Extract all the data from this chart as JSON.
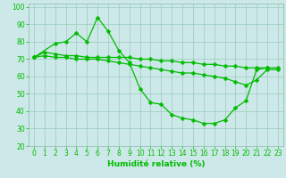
{
  "bg_color": "#cce8e8",
  "grid_color": "#99ccbb",
  "line_color": "#00bb00",
  "marker": "D",
  "markersize": 2.5,
  "linewidth": 0.9,
  "xlabel": "Humidité relative (%)",
  "xlabel_fontsize": 6.5,
  "tick_fontsize": 5.5,
  "xlim": [
    -0.5,
    23.5
  ],
  "ylim": [
    20,
    102
  ],
  "yticks": [
    20,
    30,
    40,
    50,
    60,
    70,
    80,
    90,
    100
  ],
  "xticks": [
    0,
    1,
    2,
    3,
    4,
    5,
    6,
    7,
    8,
    9,
    10,
    11,
    12,
    13,
    14,
    15,
    16,
    17,
    18,
    19,
    20,
    21,
    22,
    23
  ],
  "series_A_x": [
    0,
    1,
    2,
    3,
    4,
    5,
    6,
    7,
    8,
    9,
    10,
    11,
    12,
    13,
    14,
    15,
    16,
    17,
    18,
    19,
    20,
    21,
    22,
    23
  ],
  "series_A_y": [
    71,
    74,
    73,
    72,
    72,
    71,
    71,
    71,
    71,
    71,
    70,
    70,
    69,
    69,
    68,
    68,
    67,
    67,
    66,
    66,
    65,
    65,
    65,
    65
  ],
  "series_B_x": [
    0,
    2,
    3,
    4,
    5,
    6,
    7,
    8,
    9,
    10,
    11,
    12,
    13,
    14,
    15,
    16,
    17,
    18,
    19,
    20,
    21,
    22
  ],
  "series_B_y": [
    71,
    79,
    80,
    85,
    80,
    94,
    86,
    75,
    68,
    53,
    45,
    44,
    38,
    36,
    35,
    33,
    33,
    35,
    42,
    46,
    64,
    65
  ],
  "series_C_x": [
    0,
    1,
    2,
    3,
    4,
    5,
    6,
    7,
    8,
    9,
    10,
    11,
    12,
    13,
    14,
    15,
    16,
    17,
    18,
    19,
    20,
    21,
    22,
    23
  ],
  "series_C_y": [
    71,
    72,
    71,
    71,
    70,
    70,
    70,
    69,
    68,
    67,
    66,
    65,
    64,
    63,
    62,
    62,
    61,
    60,
    59,
    57,
    55,
    58,
    64,
    64
  ]
}
